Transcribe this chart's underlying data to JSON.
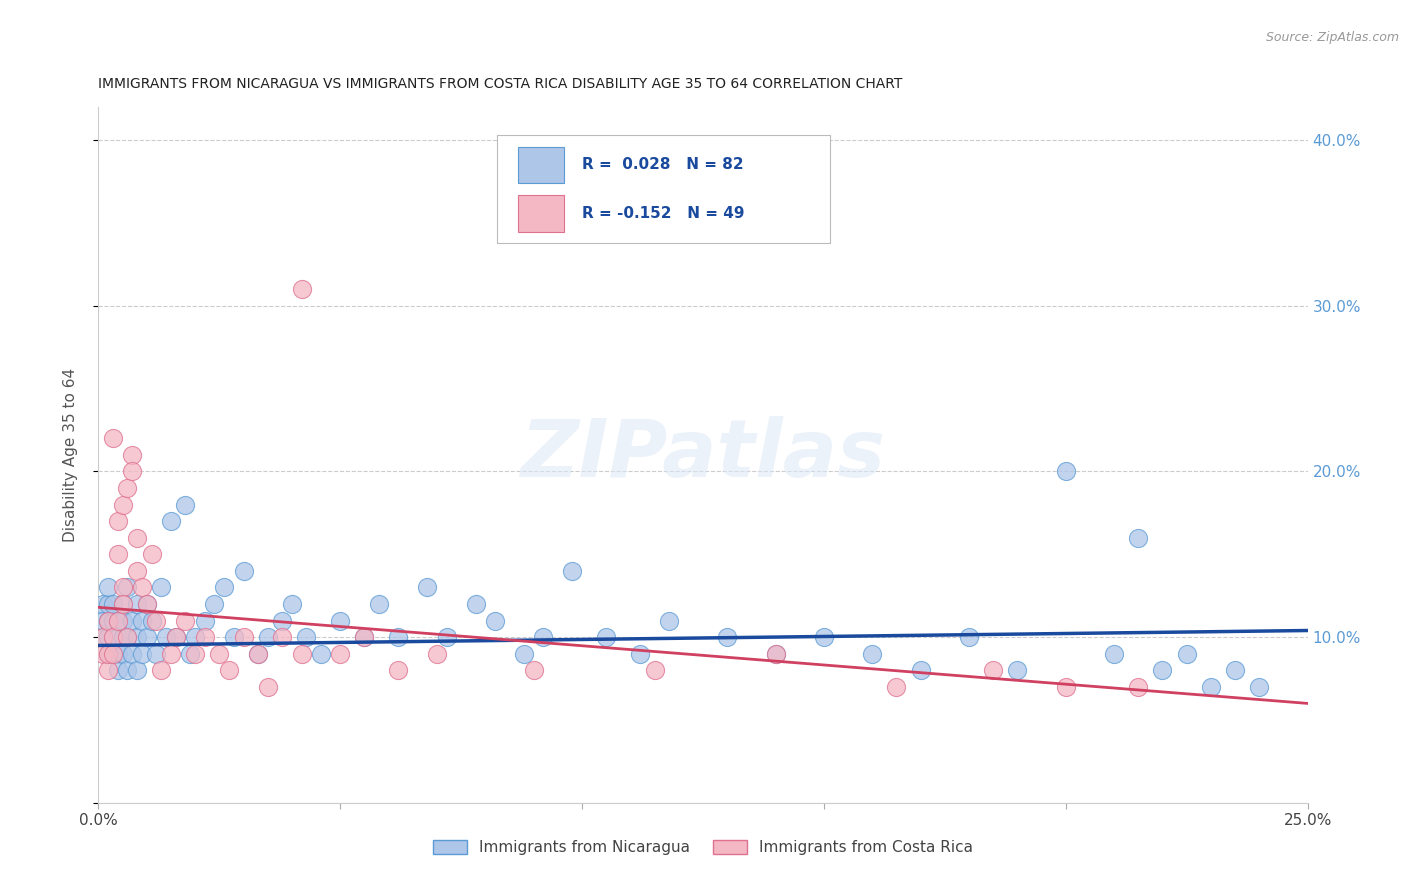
{
  "title": "IMMIGRANTS FROM NICARAGUA VS IMMIGRANTS FROM COSTA RICA DISABILITY AGE 35 TO 64 CORRELATION CHART",
  "source": "Source: ZipAtlas.com",
  "ylabel": "Disability Age 35 to 64",
  "xlim": [
    0.0,
    0.25
  ],
  "ylim": [
    0.0,
    0.42
  ],
  "nicaragua_color": "#aec6e8",
  "nicaragua_edge_color": "#5b9bd5",
  "costa_rica_color": "#f4b8c4",
  "costa_rica_edge_color": "#e07090",
  "nicaragua_line_color": "#1a4a9e",
  "costa_rica_line_color": "#d04060",
  "r_nicaragua": 0.028,
  "n_nicaragua": 82,
  "r_costa_rica": -0.152,
  "n_costa_rica": 49,
  "nicaragua_line_y0": 0.095,
  "nicaragua_line_y1": 0.104,
  "costa_rica_line_y0": 0.118,
  "costa_rica_line_y1": 0.06,
  "legend_label_nicaragua": "Immigrants from Nicaragua",
  "legend_label_costa_rica": "Immigrants from Costa Rica",
  "watermark": "ZIPatlas",
  "nic_x": [
    0.001,
    0.001,
    0.001,
    0.002,
    0.002,
    0.002,
    0.002,
    0.002,
    0.003,
    0.003,
    0.003,
    0.003,
    0.003,
    0.004,
    0.004,
    0.004,
    0.004,
    0.005,
    0.005,
    0.005,
    0.005,
    0.006,
    0.006,
    0.006,
    0.007,
    0.007,
    0.008,
    0.008,
    0.008,
    0.009,
    0.009,
    0.01,
    0.01,
    0.011,
    0.012,
    0.013,
    0.014,
    0.015,
    0.016,
    0.018,
    0.019,
    0.02,
    0.022,
    0.024,
    0.026,
    0.028,
    0.03,
    0.033,
    0.035,
    0.038,
    0.04,
    0.043,
    0.046,
    0.05,
    0.055,
    0.058,
    0.062,
    0.068,
    0.072,
    0.078,
    0.082,
    0.088,
    0.092,
    0.098,
    0.105,
    0.112,
    0.118,
    0.13,
    0.14,
    0.15,
    0.16,
    0.17,
    0.18,
    0.19,
    0.2,
    0.21,
    0.215,
    0.22,
    0.225,
    0.23,
    0.235,
    0.24
  ],
  "nic_y": [
    0.12,
    0.1,
    0.11,
    0.1,
    0.09,
    0.11,
    0.12,
    0.13,
    0.1,
    0.09,
    0.11,
    0.12,
    0.1,
    0.1,
    0.09,
    0.11,
    0.08,
    0.1,
    0.12,
    0.11,
    0.09,
    0.08,
    0.1,
    0.13,
    0.11,
    0.09,
    0.12,
    0.1,
    0.08,
    0.09,
    0.11,
    0.1,
    0.12,
    0.11,
    0.09,
    0.13,
    0.1,
    0.17,
    0.1,
    0.18,
    0.09,
    0.1,
    0.11,
    0.12,
    0.13,
    0.1,
    0.14,
    0.09,
    0.1,
    0.11,
    0.12,
    0.1,
    0.09,
    0.11,
    0.1,
    0.12,
    0.1,
    0.13,
    0.1,
    0.12,
    0.11,
    0.09,
    0.1,
    0.14,
    0.1,
    0.09,
    0.11,
    0.1,
    0.09,
    0.1,
    0.09,
    0.08,
    0.1,
    0.08,
    0.2,
    0.09,
    0.16,
    0.08,
    0.09,
    0.07,
    0.08,
    0.07
  ],
  "cr_x": [
    0.001,
    0.001,
    0.002,
    0.002,
    0.002,
    0.003,
    0.003,
    0.003,
    0.004,
    0.004,
    0.004,
    0.005,
    0.005,
    0.005,
    0.006,
    0.006,
    0.007,
    0.007,
    0.008,
    0.008,
    0.009,
    0.01,
    0.011,
    0.012,
    0.013,
    0.015,
    0.016,
    0.018,
    0.02,
    0.022,
    0.025,
    0.027,
    0.03,
    0.033,
    0.035,
    0.038,
    0.042,
    0.042,
    0.05,
    0.055,
    0.062,
    0.07,
    0.09,
    0.115,
    0.14,
    0.165,
    0.185,
    0.2,
    0.215
  ],
  "cr_y": [
    0.09,
    0.1,
    0.08,
    0.11,
    0.09,
    0.1,
    0.22,
    0.09,
    0.11,
    0.17,
    0.15,
    0.18,
    0.13,
    0.12,
    0.1,
    0.19,
    0.21,
    0.2,
    0.16,
    0.14,
    0.13,
    0.12,
    0.15,
    0.11,
    0.08,
    0.09,
    0.1,
    0.11,
    0.09,
    0.1,
    0.09,
    0.08,
    0.1,
    0.09,
    0.07,
    0.1,
    0.09,
    0.31,
    0.09,
    0.1,
    0.08,
    0.09,
    0.08,
    0.08,
    0.09,
    0.07,
    0.08,
    0.07,
    0.07
  ]
}
